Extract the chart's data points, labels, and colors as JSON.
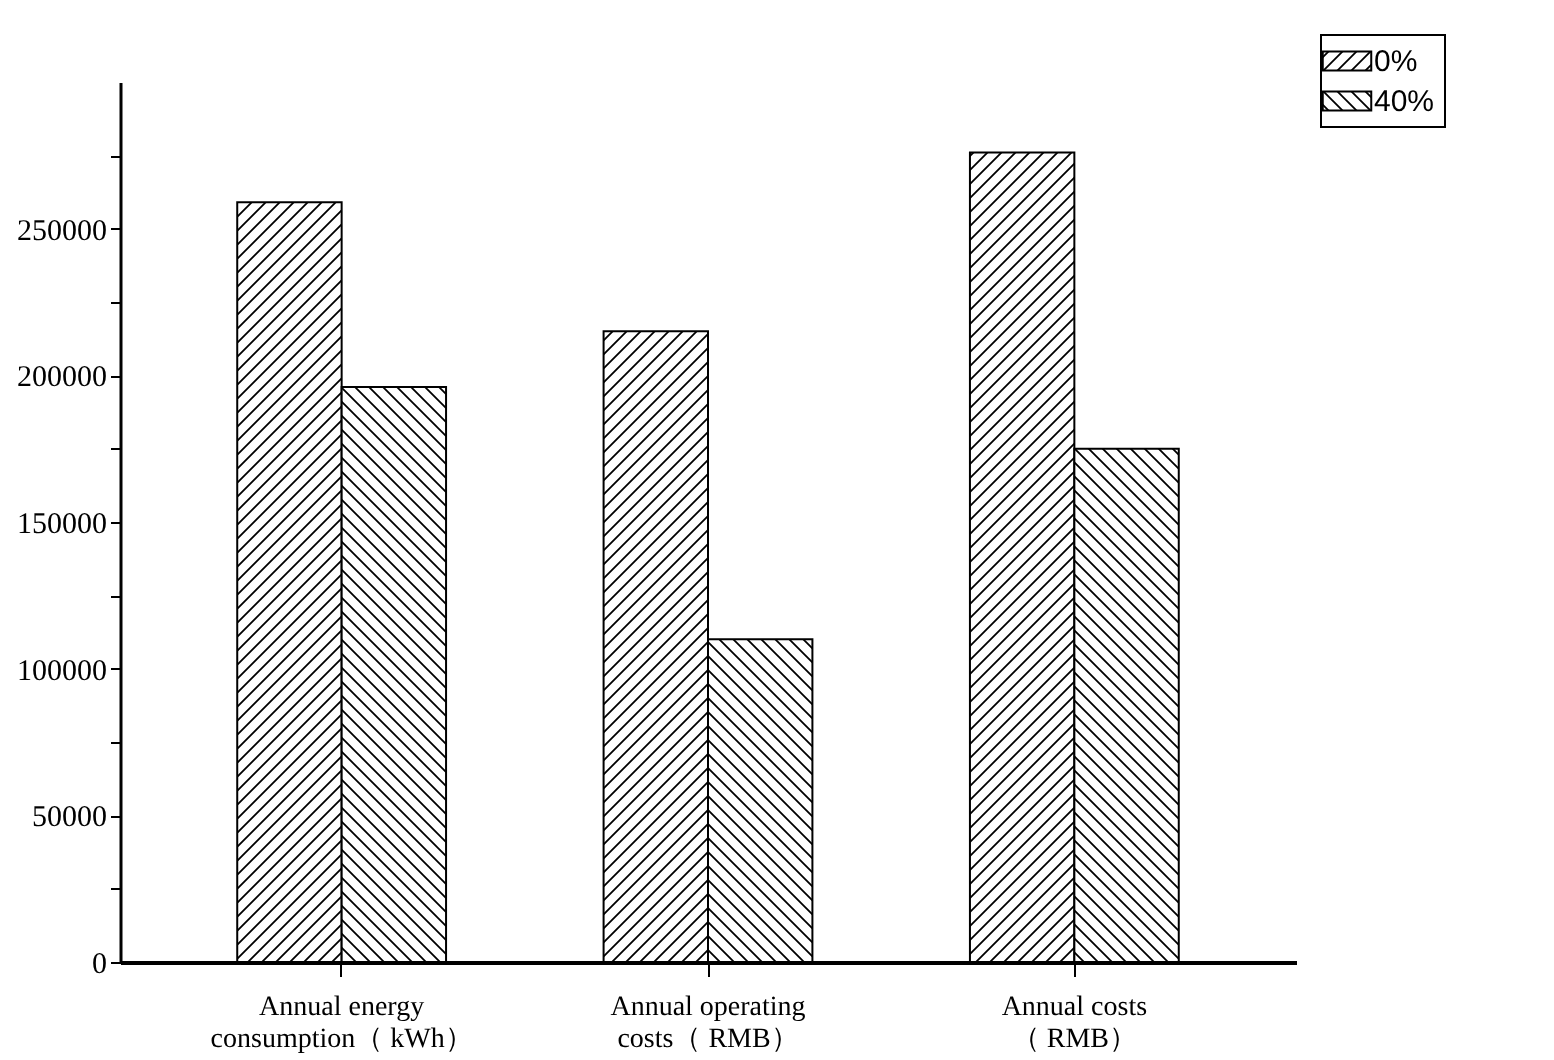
{
  "chart_data": {
    "type": "bar",
    "categories": [
      "Annual energy consumption（ kWh）",
      "Annual operating costs（ RMB）",
      "Annual costs（ RMB）"
    ],
    "series": [
      {
        "name": "0%",
        "color": "#000000",
        "values": [
          259000,
          215000,
          276000
        ]
      },
      {
        "name": "40%",
        "color": "#000000",
        "values": [
          196000,
          110000,
          175000
        ]
      }
    ],
    "ylim": [
      0,
      300000
    ],
    "yticks": [
      0,
      {
        "value": 25000,
        "label": null
      },
      50000,
      {
        "value": 75000,
        "label": null
      },
      100000,
      {
        "value": 125000,
        "label": null
      },
      150000,
      {
        "value": 175000,
        "label": null
      },
      200000,
      {
        "value": 225000,
        "label": null
      },
      250000,
      {
        "value": 275000,
        "label": null
      }
    ],
    "legend": "top right"
  }
}
